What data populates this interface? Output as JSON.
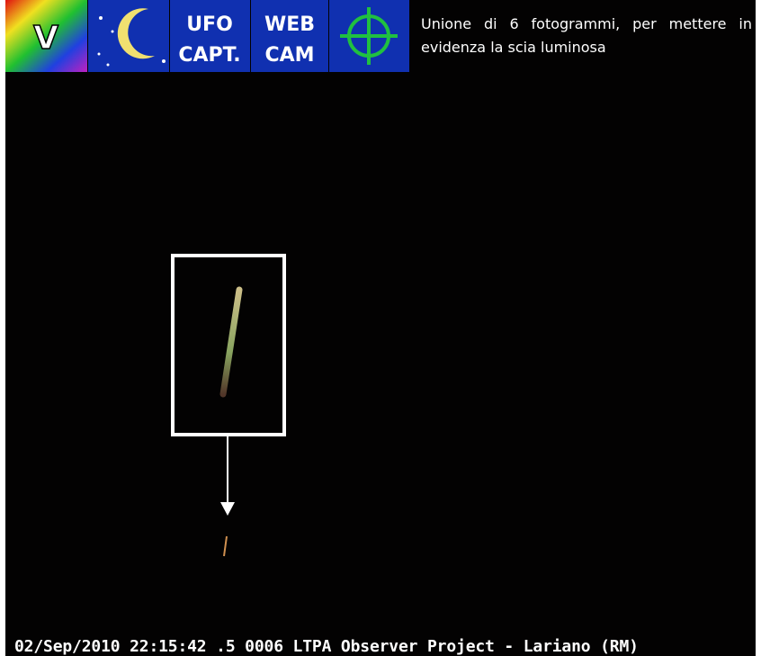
{
  "logos": [
    {
      "label": "V"
    },
    {
      "lines": [
        "UFO",
        "CAPT."
      ]
    },
    {
      "lines": [
        "WEB",
        "CAM"
      ]
    }
  ],
  "caption": "Unione di 6 fotogrammi, per mettere in evidenza la scia luminosa",
  "timestamp": "02/Sep/2010 22:15:42 .5 0006 LTPA Observer Project - Lariano (RM)"
}
